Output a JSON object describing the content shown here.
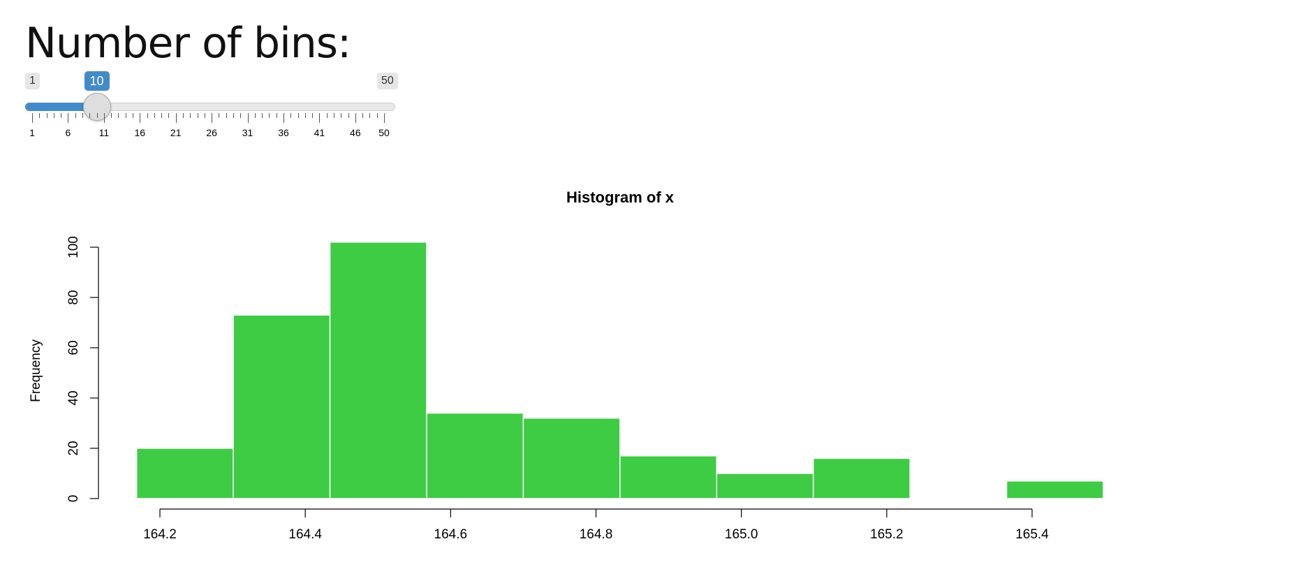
{
  "input": {
    "label": "Number of bins:",
    "slider": {
      "min": 1,
      "max": 50,
      "value": 10,
      "min_label": "1",
      "max_label": "50",
      "value_label": "10",
      "tick_labels": [
        "1",
        "6",
        "11",
        "16",
        "21",
        "26",
        "31",
        "36",
        "41",
        "46",
        "50"
      ],
      "accent_color": "#428bca"
    }
  },
  "chart_data": {
    "type": "bar",
    "title": "Histogram of x",
    "xlabel": "",
    "ylabel": "Frequency",
    "bar_color": "#3ecc44",
    "bin_edges": [
      164.168,
      164.301,
      164.434,
      164.567,
      164.7,
      164.833,
      164.966,
      165.099,
      165.232,
      165.365,
      165.498
    ],
    "values": [
      20,
      73,
      102,
      34,
      32,
      17,
      10,
      16,
      0,
      7
    ],
    "x_ticks": [
      "164.2",
      "164.4",
      "164.6",
      "164.8",
      "165.0",
      "165.2",
      "165.4"
    ],
    "y_ticks": [
      "0",
      "20",
      "40",
      "60",
      "80",
      "100"
    ],
    "xlim": [
      164.2,
      165.4
    ],
    "ylim": [
      0,
      100
    ],
    "grid": false
  }
}
